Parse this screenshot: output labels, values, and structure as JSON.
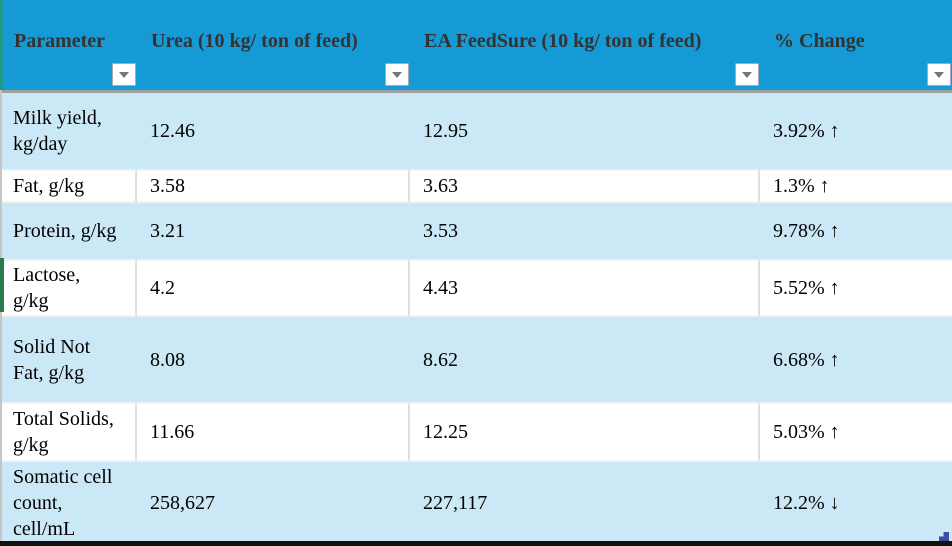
{
  "table": {
    "columns": [
      {
        "label": "Parameter"
      },
      {
        "label": "Urea (10 kg/ ton of feed)"
      },
      {
        "label": "EA FeedSure (10 kg/ ton of feed)"
      },
      {
        "label": "% Change"
      }
    ],
    "rows": [
      {
        "parameter": "Milk yield,\nkg/day",
        "urea": "12.46",
        "feedsure": "12.95",
        "change": "3.92% ↑"
      },
      {
        "parameter": "Fat, g/kg",
        "urea": "3.58",
        "feedsure": "3.63",
        "change": "1.3% ↑"
      },
      {
        "parameter": "Protein, g/kg",
        "urea": "3.21",
        "feedsure": "3.53",
        "change": "9.78% ↑"
      },
      {
        "parameter": "Lactose,\ng/kg",
        "urea": "4.2",
        "feedsure": "4.43",
        "change": "5.52% ↑"
      },
      {
        "parameter": "Solid Not\nFat, g/kg",
        "urea": "8.08",
        "feedsure": "8.62",
        "change": "6.68% ↑"
      },
      {
        "parameter": "Total Solids,\ng/kg",
        "urea": "11.66",
        "feedsure": "12.25",
        "change": "5.03% ↑"
      },
      {
        "parameter": "Somatic cell\ncount,\ncell/mL",
        "urea": "258,627",
        "feedsure": "227,117",
        "change": "12.2% ↓"
      }
    ],
    "icons": {
      "filter_dropdown": "chevron-down"
    }
  },
  "colors": {
    "header_bg": "#169ad5",
    "header_text": "#333333",
    "row_blue": "#cbe8f7",
    "edge_teal": "#1f9a8a",
    "sheet_green": "#2a7b4f",
    "corner_blue": "#3b4ea3",
    "bottom_bar": "#111111"
  }
}
